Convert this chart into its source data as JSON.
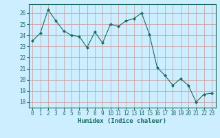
{
  "x": [
    0,
    1,
    2,
    3,
    4,
    5,
    6,
    7,
    8,
    9,
    10,
    11,
    12,
    13,
    14,
    15,
    16,
    17,
    18,
    19,
    20,
    21,
    22,
    23
  ],
  "y": [
    23.5,
    24.2,
    26.3,
    25.3,
    24.4,
    24.0,
    23.9,
    22.9,
    24.3,
    23.3,
    25.0,
    24.8,
    25.3,
    25.5,
    26.0,
    24.1,
    21.1,
    20.4,
    19.5,
    20.1,
    19.5,
    18.0,
    18.7,
    18.8
  ],
  "xlabel": "Humidex (Indice chaleur)",
  "xlim": [
    -0.5,
    23.5
  ],
  "ylim": [
    17.5,
    26.8
  ],
  "yticks": [
    18,
    19,
    20,
    21,
    22,
    23,
    24,
    25,
    26
  ],
  "xticks": [
    0,
    1,
    2,
    3,
    4,
    5,
    6,
    7,
    8,
    9,
    10,
    11,
    12,
    13,
    14,
    15,
    16,
    17,
    18,
    19,
    20,
    21,
    22,
    23
  ],
  "line_color": "#1a6b5e",
  "marker": "D",
  "marker_size": 2.0,
  "bg_color": "#cceeff",
  "grid_color": "#cc9999",
  "spine_color": "#1a6b5e",
  "tick_color": "#1a6b5e",
  "label_color": "#1a6b5e",
  "tick_fontsize": 5.5,
  "xlabel_fontsize": 6.5
}
